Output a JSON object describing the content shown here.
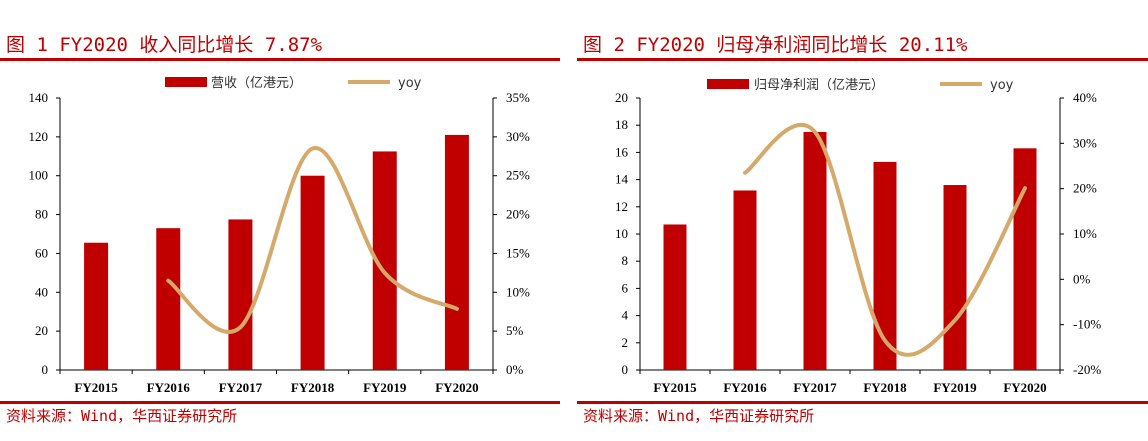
{
  "colors": {
    "accent": "#c00000",
    "bar": "#c00000",
    "line": "#d4a96a",
    "axis": "#000000"
  },
  "left": {
    "title": "图 1  FY2020 收入同比增长 7.87%",
    "source": "资料来源：Wind，华西证券研究所"
  },
  "right": {
    "title": "图 2  FY2020 归母净利润同比增长 20.11%",
    "source": "资料来源：Wind，华西证券研究所"
  },
  "chart_data": [
    {
      "type": "bar",
      "title": "FY2020 收入同比增长 7.87%",
      "categories": [
        "FY2015",
        "FY2016",
        "FY2017",
        "FY2018",
        "FY2019",
        "FY2020"
      ],
      "series": [
        {
          "name": "营收（亿港元）",
          "type": "bar",
          "axis": "left",
          "values": [
            65.5,
            73.0,
            77.5,
            100.0,
            112.5,
            121.0
          ]
        },
        {
          "name": "yoy",
          "type": "line",
          "axis": "right",
          "smooth": true,
          "values": [
            null,
            11.5,
            5.5,
            28.5,
            12.5,
            7.87
          ]
        }
      ],
      "y_left": {
        "min": 0,
        "max": 140,
        "step": 20,
        "ticks": [
          "0",
          "20",
          "40",
          "60",
          "80",
          "100",
          "120",
          "140"
        ]
      },
      "y_right": {
        "min": 0,
        "max": 35,
        "step": 5,
        "ticks": [
          "0%",
          "5%",
          "10%",
          "15%",
          "20%",
          "25%",
          "30%",
          "35%"
        ]
      },
      "legend": {
        "position": "top-center"
      }
    },
    {
      "type": "bar",
      "title": "FY2020 归母净利润同比增长 20.11%",
      "categories": [
        "FY2015",
        "FY2016",
        "FY2017",
        "FY2018",
        "FY2019",
        "FY2020"
      ],
      "series": [
        {
          "name": "归母净利润（亿港元）",
          "type": "bar",
          "axis": "left",
          "values": [
            10.7,
            13.2,
            17.5,
            15.3,
            13.6,
            16.3
          ]
        },
        {
          "name": "yoy",
          "type": "line",
          "axis": "right",
          "smooth": true,
          "values": [
            null,
            23.5,
            32.5,
            -13.5,
            -9.0,
            20.11
          ]
        }
      ],
      "y_left": {
        "min": 0,
        "max": 20,
        "step": 2,
        "ticks": [
          "0",
          "2",
          "4",
          "6",
          "8",
          "10",
          "12",
          "14",
          "16",
          "18",
          "20"
        ]
      },
      "y_right": {
        "min": -20,
        "max": 40,
        "step": 10,
        "ticks": [
          "-20%",
          "-10%",
          "0%",
          "10%",
          "20%",
          "30%",
          "40%"
        ]
      },
      "legend": {
        "position": "top-center"
      }
    }
  ]
}
